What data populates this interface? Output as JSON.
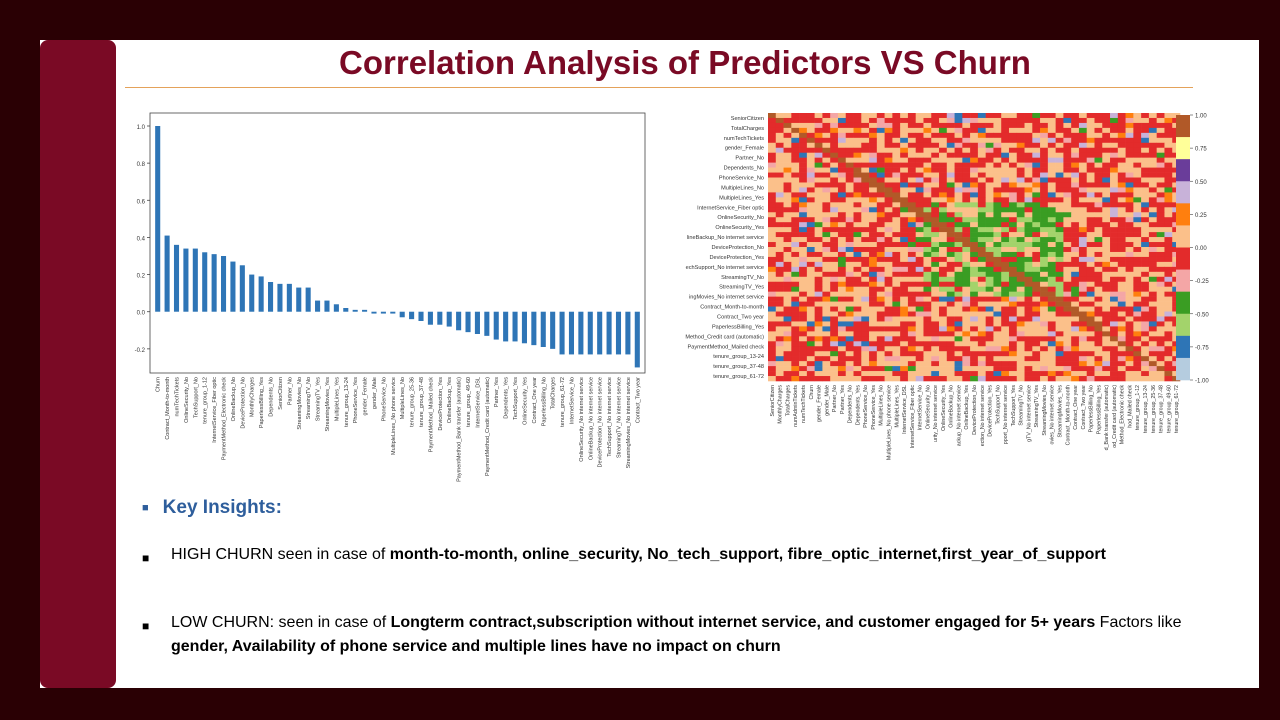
{
  "slide": {
    "title": "Correlation Analysis of Predictors VS Churn",
    "colors": {
      "frame": "#2a0004",
      "accent_bar": "#7a0a25",
      "title": "#7a0a25",
      "heading": "#2e5e9c",
      "rule": "#e4a25a"
    }
  },
  "insights": {
    "heading": "Key Insights:",
    "high": {
      "prefix": "HIGH CHURN seen in case of ",
      "bold": "month-to-month, online_security, No_tech_support, fibre_optic_internet,first_year_of_support"
    },
    "low": {
      "prefix": "LOW CHURN: seen in case of ",
      "bold1": "Longterm contract,subscription without internet service, and customer engaged for 5+ years",
      "middle": " Factors like ",
      "bold2": "gender, Availability of phone service and multiple lines have no impact on churn"
    }
  },
  "chart_data": [
    {
      "type": "bar",
      "title": "",
      "color": "#2e75b6",
      "ylim": [
        -0.33,
        1.07
      ],
      "yticks": [
        "1.0",
        "0.8",
        "0.6",
        "0.4",
        "0.2",
        "0.0",
        "-0.2"
      ],
      "categories": [
        "Churn",
        "Contract_Month-to-month",
        "numTechTickets",
        "OnlineSecurity_No",
        "TechSupport_No",
        "tenure_group_1-12",
        "InternetService_Fiber optic",
        "PaymentMethod_Electronic check",
        "OnlineBackup_No",
        "DeviceProtection_No",
        "MonthlyCharges",
        "PaperlessBilling_Yes",
        "Dependents_No",
        "SeniorCitizen",
        "Partner_No",
        "StreamingMovies_No",
        "StreamingTV_No",
        "StreamingTV_Yes",
        "StreamingMovies_Yes",
        "MultipleLines_Yes",
        "tenure_group_13-24",
        "PhoneService_Yes",
        "gender_Female",
        "gender_Male",
        "PhoneService_No",
        "MultipleLines_No phone service",
        "MultipleLines_No",
        "tenure_group_25-36",
        "tenure_group_37-48",
        "PaymentMethod_Mailed check",
        "DeviceProtection_Yes",
        "OnlineBackup_Yes",
        "PaymentMethod_Bank transfer (automatic)",
        "tenure_group_49-60",
        "InternetService_DSL",
        "PaymentMethod_Credit card (automatic)",
        "Partner_Yes",
        "Dependents_Yes",
        "TechSupport_Yes",
        "OnlineSecurity_Yes",
        "Contract_One year",
        "PaperlessBilling_No",
        "TotalCharges",
        "tenure_group_61-72",
        "InternetService_No",
        "OnlineSecurity_No internet service",
        "OnlineBackup_No internet service",
        "DeviceProtection_No internet service",
        "TechSupport_No internet service",
        "StreamingTV_No internet service",
        "StreamingMovies_No internet service",
        "Contract_Two year"
      ],
      "values": [
        1.0,
        0.41,
        0.36,
        0.34,
        0.34,
        0.32,
        0.31,
        0.3,
        0.27,
        0.25,
        0.2,
        0.19,
        0.16,
        0.15,
        0.15,
        0.13,
        0.13,
        0.06,
        0.06,
        0.04,
        0.02,
        0.01,
        0.01,
        -0.01,
        -0.01,
        -0.01,
        -0.03,
        -0.04,
        -0.05,
        -0.07,
        -0.07,
        -0.08,
        -0.1,
        -0.11,
        -0.12,
        -0.13,
        -0.15,
        -0.16,
        -0.16,
        -0.17,
        -0.18,
        -0.19,
        -0.2,
        -0.23,
        -0.23,
        -0.23,
        -0.23,
        -0.23,
        -0.23,
        -0.23,
        -0.23,
        -0.3
      ]
    },
    {
      "type": "heatmap",
      "title": "",
      "y_labels": [
        "SeniorCitizen",
        "TotalCharges",
        "numTechTickets",
        "gender_Female",
        "Partner_No",
        "Dependents_No",
        "PhoneService_No",
        "MultipleLines_No",
        "MultipleLines_Yes",
        "InternetService_Fiber optic",
        "OnlineSecurity_No",
        "OnlineSecurity_Yes",
        "lineBackup_No internet service",
        "DeviceProtection_No",
        "DeviceProtection_Yes",
        "echSupport_No internet service",
        "StreamingTV_No",
        "StreamingTV_Yes",
        "ingMovies_No internet service",
        "Contract_Month-to-month",
        "Contract_Two year",
        "PaperlessBilling_Yes",
        "Method_Credit card (automatic)",
        "PaymentMethod_Mailed check",
        "tenure_group_13-24",
        "tenure_group_37-48",
        "tenure_group_61-72"
      ],
      "x_labels": [
        "SeniorCitizen",
        "MonthlyCharges",
        "TotalCharges",
        "numAdminTickets",
        "numTechTickets",
        "Churn",
        "gender_Female",
        "gender_Male",
        "Partner_No",
        "Partner_Yes",
        "Dependents_No",
        "Dependents_Yes",
        "PhoneService_No",
        "PhoneService_Yes",
        "MultipleLines_No",
        "MultipleLines_No phone service",
        "MultipleLines_Yes",
        "InternetService_DSL",
        "InternetService_Fiber optic",
        "InternetService_No",
        "OnlineSecurity_No",
        "urity_No internet service",
        "OnlineSecurity_Yes",
        "OnlineBackup_No",
        "ackup_No internet service",
        "OnlineBackup_Yes",
        "DeviceProtection_No",
        "ection_No internet service",
        "DeviceProtection_Yes",
        "TechSupport_No",
        "pport_No internet service",
        "TechSupport_Yes",
        "StreamingTV_No",
        "gTV_No internet service",
        "StreamingTV_Yes",
        "StreamingMovies_No",
        "ovies_No internet service",
        "StreamingMovies_Yes",
        "Contract_Month-to-month",
        "Contract_One year",
        "Contract_Two year",
        "PaperlessBilling_No",
        "PaperlessBilling_Yes",
        "d_Bank transfer (automatic)",
        "od_Credit card (automatic)",
        "Method_Electronic check",
        "hod_Mailed check",
        "tenure_group_1-12",
        "tenure_group_13-24",
        "tenure_group_25-36",
        "tenure_group_37-48",
        "tenure_group_49-60",
        "tenure_group_61-72"
      ],
      "colorbar_ticks": [
        "1.00",
        "0.75",
        "0.50",
        "0.25",
        "0.00",
        "-0.25",
        "-0.50",
        "-0.75",
        "-1.00"
      ],
      "colormap": [
        "#b5ccdf",
        "#2e75b6",
        "#a3d36b",
        "#3a9d23",
        "#f4a6a6",
        "#e32b2b",
        "#fbc08a",
        "#ff7f0e",
        "#c8b2d9",
        "#6a3d9a",
        "#ffff99",
        "#b15928"
      ]
    }
  ]
}
